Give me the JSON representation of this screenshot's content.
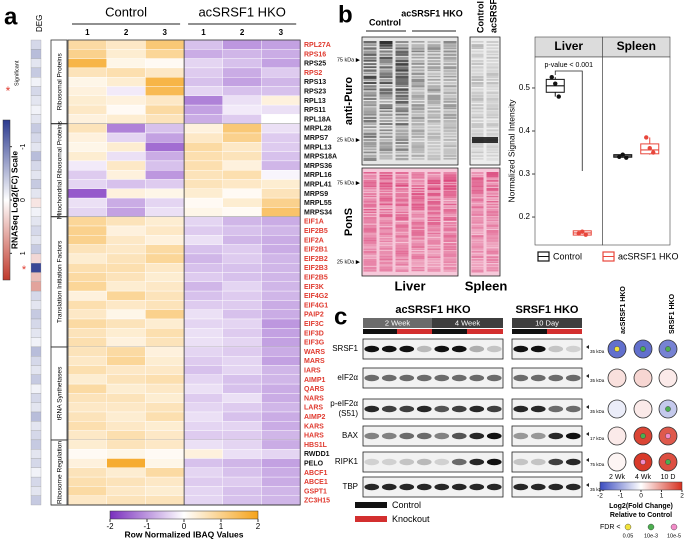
{
  "panel_labels": {
    "a": "a",
    "b": "b",
    "c": "c"
  },
  "heatmap": {
    "deg_header": "DEG",
    "conditions": [
      {
        "label": "Control",
        "replicates": [
          1,
          2,
          3
        ]
      },
      {
        "label": "acSRSF1 HKO",
        "replicates": [
          1,
          2,
          3
        ]
      }
    ],
    "deg_scale": {
      "title": "RNASeq Log2(FC) Scale",
      "star": "*",
      "significant_label": "Significant",
      "lim": [
        -1.5,
        1.5
      ],
      "ticks": [
        -1,
        0,
        1
      ]
    },
    "colorbar": {
      "title": "Row Normalized IBAQ Values",
      "lim": [
        -2,
        2
      ],
      "ticks": [
        -2,
        -1,
        0,
        1,
        2
      ]
    },
    "groups": [
      {
        "label": "Ribosomal Proteins",
        "genes": [
          {
            "name": "RPL27A",
            "color": "#e03a2f",
            "deg": -0.3,
            "values": [
              0.8,
              0.5,
              1.2,
              -0.6,
              -1.0,
              -0.9
            ]
          },
          {
            "name": "RPS16",
            "color": "#e03a2f",
            "deg": -0.5,
            "values": [
              1.0,
              0.4,
              0.9,
              -0.8,
              -0.7,
              -0.8
            ]
          },
          {
            "name": "RPS25",
            "color": "#111111",
            "deg": -0.2,
            "values": [
              1.6,
              0.2,
              0.1,
              -0.4,
              -0.6,
              -0.9
            ]
          },
          {
            "name": "RPS2",
            "color": "#e03a2f",
            "deg": -0.4,
            "values": [
              0.6,
              0.7,
              0.5,
              -0.5,
              -0.8,
              -0.5
            ]
          },
          {
            "name": "RPS13",
            "color": "#111111",
            "deg": -0.1,
            "values": [
              0.2,
              0.4,
              1.6,
              -0.6,
              -0.9,
              -0.7
            ]
          },
          {
            "name": "RPS23",
            "color": "#111111",
            "deg": -0.3,
            "values": [
              0.3,
              -0.2,
              1.5,
              -0.4,
              -0.6,
              -0.6
            ]
          },
          {
            "name": "RPL13",
            "color": "#111111",
            "deg": -0.2,
            "values": [
              0.4,
              0.3,
              0.5,
              -1.2,
              -0.3,
              0.3
            ]
          },
          {
            "name": "RPS11",
            "color": "#111111",
            "deg": -0.1,
            "values": [
              0.5,
              0.1,
              0.8,
              -0.9,
              -0.2,
              -0.3
            ]
          },
          {
            "name": "RPL18A",
            "color": "#111111",
            "deg": -0.2,
            "values": [
              0.3,
              0.4,
              0.6,
              -0.8,
              -0.5,
              0
            ]
          }
        ]
      },
      {
        "label": "Mitochondrial Ribosomal Proteins",
        "genes": [
          {
            "name": "MRPL28",
            "color": "#111111",
            "deg": -0.4,
            "values": [
              0.6,
              -1.2,
              -0.6,
              0.3,
              1.2,
              -0.3
            ]
          },
          {
            "name": "MRPS7",
            "color": "#111111",
            "deg": -0.3,
            "values": [
              0.3,
              -0.4,
              -0.9,
              0.5,
              1.0,
              -0.5
            ]
          },
          {
            "name": "MRPL13",
            "color": "#111111",
            "deg": -0.2,
            "values": [
              0.2,
              0.4,
              -1.4,
              0.8,
              0.5,
              -0.5
            ]
          },
          {
            "name": "MRPS18A",
            "color": "#111111",
            "deg": -0.5,
            "values": [
              0.4,
              -0.3,
              -0.8,
              0.7,
              0.6,
              -0.6
            ]
          },
          {
            "name": "MRPS36",
            "color": "#111111",
            "deg": -0.3,
            "values": [
              -0.2,
              0.5,
              -0.6,
              0.7,
              0.3,
              -0.7
            ]
          },
          {
            "name": "MRPL16",
            "color": "#111111",
            "deg": -0.2,
            "values": [
              -0.5,
              0.3,
              -1.0,
              0.6,
              0.7,
              -0.1
            ]
          },
          {
            "name": "MRPL41",
            "color": "#111111",
            "deg": -0.4,
            "values": [
              -0.4,
              -0.6,
              -0.5,
              0.6,
              0.5,
              0.4
            ]
          },
          {
            "name": "MRPS9",
            "color": "#111111",
            "deg": -0.2,
            "values": [
              -1.6,
              0.3,
              0.2,
              0.4,
              0.1,
              0.6
            ]
          },
          {
            "name": "MRPL55",
            "color": "#111111",
            "deg": 0.2,
            "values": [
              -0.3,
              -0.8,
              -0.4,
              0.1,
              0.4,
              1.0
            ]
          },
          {
            "name": "MRPS34",
            "color": "#111111",
            "deg": -0.1,
            "values": [
              -0.4,
              -0.9,
              -0.3,
              0.2,
              0.1,
              1.3
            ]
          }
        ]
      },
      {
        "label": "Translation Initiation Factors",
        "genes": [
          {
            "name": "EIF1A",
            "color": "#e03a2f",
            "deg": -0.2,
            "values": [
              0.9,
              0.6,
              0.4,
              -0.4,
              -0.7,
              -0.8
            ]
          },
          {
            "name": "EIF2B5",
            "color": "#e03a2f",
            "deg": -0.3,
            "values": [
              1.0,
              0.3,
              0.5,
              -0.5,
              -0.6,
              -0.7
            ]
          },
          {
            "name": "EIF2A",
            "color": "#e03a2f",
            "deg": -0.2,
            "values": [
              1.0,
              0.5,
              0.3,
              -0.3,
              -0.7,
              -0.8
            ]
          },
          {
            "name": "EIF2B1",
            "color": "#e03a2f",
            "deg": -0.4,
            "values": [
              0.6,
              0.5,
              0.8,
              -0.6,
              -0.5,
              -0.8
            ]
          },
          {
            "name": "EIF2B2",
            "color": "#e03a2f",
            "deg": 0.3,
            "values": [
              0.4,
              0.6,
              0.9,
              -0.7,
              -0.5,
              -0.7
            ]
          },
          {
            "name": "EIF2B3",
            "color": "#e03a2f",
            "deg": -1.4,
            "star": "*",
            "values": [
              0.7,
              0.7,
              0.5,
              -0.6,
              -0.6,
              -0.7
            ]
          },
          {
            "name": "EIF2B5",
            "color": "#e03a2f",
            "deg": 0.5,
            "values": [
              0.8,
              0.6,
              0.4,
              -0.5,
              -0.6,
              -0.7
            ]
          },
          {
            "name": "EIF3K",
            "color": "#e03a2f",
            "deg": 0.7,
            "values": [
              0.9,
              0.4,
              0.5,
              -0.7,
              -0.4,
              -0.7
            ]
          },
          {
            "name": "EIF4G2",
            "color": "#e03a2f",
            "deg": -0.3,
            "values": [
              0.3,
              0.9,
              0.6,
              -0.6,
              -0.5,
              -0.7
            ]
          },
          {
            "name": "EIF4G1",
            "color": "#e03a2f",
            "deg": -0.2,
            "values": [
              0.7,
              0.5,
              0.6,
              -0.5,
              -0.5,
              -0.8
            ]
          },
          {
            "name": "PAIP2",
            "color": "#e03a2f",
            "deg": -0.4,
            "values": [
              0.5,
              0.2,
              1.0,
              -0.3,
              -0.6,
              -0.8
            ]
          },
          {
            "name": "EIF3C",
            "color": "#e03a2f",
            "deg": -0.3,
            "values": [
              0.8,
              0.6,
              0.4,
              -0.4,
              -0.4,
              -1.0
            ]
          },
          {
            "name": "EIF3D",
            "color": "#e03a2f",
            "deg": -0.2,
            "values": [
              0.6,
              0.4,
              0.7,
              -0.3,
              -0.5,
              -0.9
            ]
          },
          {
            "name": "EIF3G",
            "color": "#e03a2f",
            "deg": -0.1,
            "values": [
              0.7,
              0.3,
              0.6,
              -0.3,
              -0.4,
              -0.9
            ]
          }
        ]
      },
      {
        "label": "tRNA Synthetases",
        "genes": [
          {
            "name": "WARS",
            "color": "#e03a2f",
            "deg": -0.5,
            "values": [
              0.6,
              0.8,
              0.3,
              -0.4,
              -0.5,
              -0.8
            ]
          },
          {
            "name": "MARS",
            "color": "#e03a2f",
            "deg": -0.3,
            "values": [
              0.5,
              0.9,
              0.4,
              -0.5,
              -0.4,
              -0.9
            ]
          },
          {
            "name": "IARS",
            "color": "#e03a2f",
            "deg": -0.2,
            "values": [
              0.7,
              0.5,
              0.5,
              -0.6,
              -0.4,
              -0.7
            ]
          },
          {
            "name": "AIMP1",
            "color": "#e03a2f",
            "deg": -0.4,
            "values": [
              0.4,
              0.6,
              0.7,
              -0.4,
              -0.6,
              -0.7
            ]
          },
          {
            "name": "QARS",
            "color": "#e03a2f",
            "deg": -0.1,
            "values": [
              0.8,
              0.4,
              0.5,
              -0.3,
              -0.6,
              -0.8
            ]
          },
          {
            "name": "NARS",
            "color": "#e03a2f",
            "deg": -0.3,
            "values": [
              0.6,
              0.6,
              0.4,
              -0.5,
              -0.3,
              -0.8
            ]
          },
          {
            "name": "LARS",
            "color": "#e03a2f",
            "deg": -0.2,
            "values": [
              0.5,
              0.5,
              0.6,
              -0.4,
              -0.5,
              -0.7
            ]
          },
          {
            "name": "AIMP2",
            "color": "#e03a2f",
            "deg": -0.5,
            "values": [
              0.6,
              0.4,
              0.7,
              -0.3,
              -0.6,
              -0.8
            ]
          },
          {
            "name": "KARS",
            "color": "#e03a2f",
            "deg": -0.2,
            "values": [
              0.7,
              0.5,
              0.4,
              -0.4,
              -0.4,
              -0.8
            ]
          },
          {
            "name": "HARS",
            "color": "#e03a2f",
            "deg": -0.3,
            "values": [
              0.5,
              0.7,
              0.5,
              -0.5,
              -0.5,
              -0.7
            ]
          }
        ]
      },
      {
        "label": "Ribosome Regulation",
        "genes": [
          {
            "name": "HBS1L",
            "color": "#e03a2f",
            "deg": -0.4,
            "values": [
              0.4,
              0.6,
              0.5,
              -0.3,
              -0.4,
              -0.8
            ]
          },
          {
            "name": "RWDD1",
            "color": "#111111",
            "deg": -0.2,
            "values": [
              0.1,
              0.2,
              0.1,
              0.3,
              -0.3,
              -0.4
            ]
          },
          {
            "name": "PELO",
            "color": "#111111",
            "deg": -0.3,
            "values": [
              0.3,
              1.8,
              0.2,
              -0.6,
              -0.7,
              -0.9
            ]
          },
          {
            "name": "ABCF1",
            "color": "#e03a2f",
            "deg": -0.1,
            "values": [
              0.6,
              0.4,
              0.8,
              -0.4,
              -0.6,
              -0.8
            ]
          },
          {
            "name": "ABCE1",
            "color": "#e03a2f",
            "deg": -0.3,
            "values": [
              0.7,
              0.6,
              0.5,
              -0.5,
              -0.5,
              -0.8
            ]
          },
          {
            "name": "GSPT1",
            "color": "#e03a2f",
            "deg": -0.2,
            "values": [
              0.8,
              0.5,
              0.4,
              -0.4,
              -0.6,
              -0.7
            ]
          },
          {
            "name": "ZC3H15",
            "color": "#e03a2f",
            "deg": -0.4,
            "values": [
              0.5,
              0.6,
              0.6,
              -0.4,
              -0.6,
              -0.7
            ]
          }
        ]
      }
    ]
  },
  "puro_blot": {
    "control": "Control",
    "ko": "acSRSF1 HKO",
    "spleen_control": "Control",
    "spleen_ko": "acSRSF1 HKO",
    "antibody": "anti-Puro",
    "stain": "PonS",
    "markers": [
      "75 kDa ▶",
      "25 kDa ▶",
      "75 kDa ▶",
      "25 kDa ▶"
    ],
    "tissues": [
      "Liver",
      "Spleen"
    ]
  },
  "chart_data": {
    "type": "box",
    "y_label": "Normalized Signal Intensity",
    "facets": [
      "Liver",
      "Spleen"
    ],
    "ylim": [
      0.135,
      0.572
    ],
    "yticks": [
      0.2,
      0.3,
      0.4,
      0.5
    ],
    "annotation": "p-value < 0.001",
    "series": [
      {
        "name": "Control",
        "color": "#111111",
        "boxes": [
          {
            "low": 0.48,
            "q1": 0.49,
            "median": 0.505,
            "q3": 0.52,
            "high": 0.525,
            "points": [
              0.525,
              0.51,
              0.48
            ]
          },
          {
            "low": 0.338,
            "q1": 0.339,
            "median": 0.342,
            "q3": 0.345,
            "high": 0.346,
            "points": [
              0.34,
              0.345,
              0.338
            ]
          }
        ]
      },
      {
        "name": "acSRSF1 HKO",
        "color": "#e8473c",
        "boxes": [
          {
            "low": 0.157,
            "q1": 0.158,
            "median": 0.163,
            "q3": 0.168,
            "high": 0.17,
            "points": [
              0.162,
              0.166,
              0.159
            ]
          },
          {
            "low": 0.345,
            "q1": 0.347,
            "median": 0.356,
            "q3": 0.37,
            "high": 0.385,
            "points": [
              0.385,
              0.36,
              0.35
            ]
          }
        ]
      }
    ]
  },
  "western": {
    "groups": [
      "acSRSF1 HKO",
      "SRSF1 HKO"
    ],
    "timepoints": [
      "2 Week",
      "4 Week",
      "10 Day"
    ],
    "rows": [
      {
        "label": "SRSF1",
        "kda": "35 kDa"
      },
      {
        "label": "eIF2α",
        "kda": "35 kDa"
      },
      {
        "label": "p-eIF2α",
        "sublabel": "(S51)",
        "kda": "35 kDa"
      },
      {
        "label": "BAX",
        "kda": "17 kDa"
      },
      {
        "label": "RIPK1",
        "kda": "75 kDa"
      },
      {
        "label": "TBP",
        "kda": "35 kDa"
      }
    ],
    "legend": [
      {
        "name": "Control",
        "color": "#111111"
      },
      {
        "name": "Knockout",
        "color": "#d32f2f"
      }
    ]
  },
  "dot_plot": {
    "headers": [
      "acSRSF1 HKO",
      "SRSF1 HKO"
    ],
    "column_labels": [
      "2 Wk",
      "4 Wk",
      "10 D"
    ],
    "rows": [
      {
        "fc": [
          -1.6,
          -1.6,
          -1.4
        ],
        "fdr": [
          "< 0.05",
          "10e-3",
          "10e-3"
        ]
      },
      {
        "fc": [
          0.3,
          0.4,
          0.2
        ],
        "fdr": [
          null,
          null,
          null
        ]
      },
      {
        "fc": [
          -0.2,
          0.2,
          -0.6
        ],
        "fdr": [
          null,
          null,
          "10e-3"
        ]
      },
      {
        "fc": [
          0.2,
          1.8,
          1.6
        ],
        "fdr": [
          null,
          "10e-3",
          "10e-5"
        ]
      },
      {
        "fc": [
          0.1,
          1.9,
          1.7
        ],
        "fdr": [
          null,
          "10e-5",
          "10e-3"
        ]
      }
    ],
    "colorbar": {
      "lim": [
        -2,
        2
      ],
      "ticks": [
        -2,
        -1,
        0,
        1,
        2
      ],
      "title": "Log2(Fold Change)",
      "subtitle": "Relative to Control"
    },
    "fdr_legend": {
      "title": "FDR <",
      "levels": [
        {
          "label": "0.05",
          "key": "< 0.05",
          "color": "#f2e33b"
        },
        {
          "label": "10e-3",
          "key": "10e-3",
          "color": "#4caf50"
        },
        {
          "label": "10e-5",
          "key": "10e-5",
          "color": "#f28cc8"
        }
      ]
    }
  }
}
